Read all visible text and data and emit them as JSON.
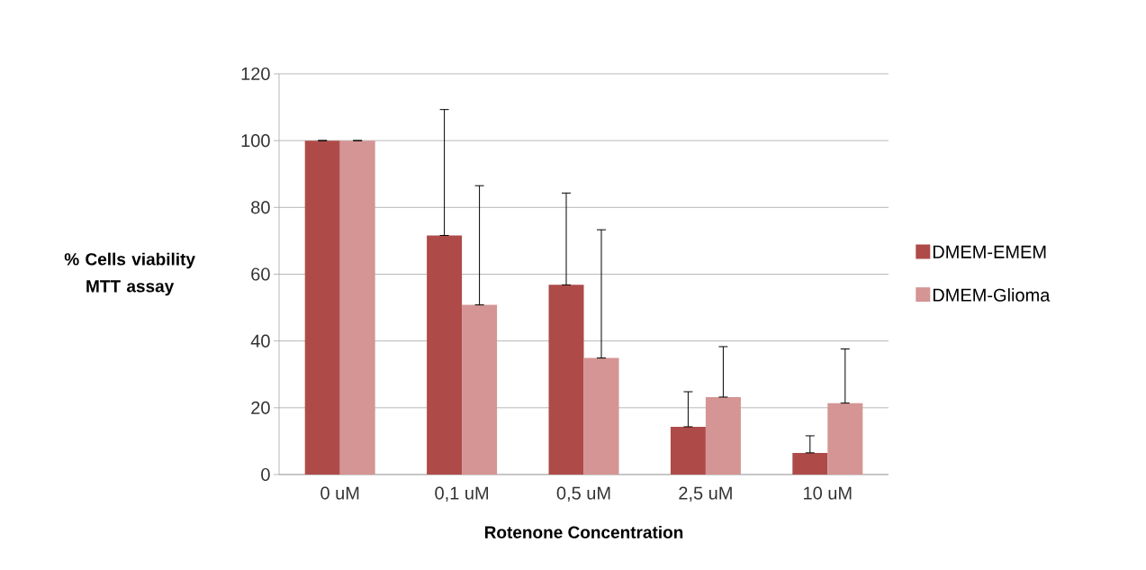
{
  "chart_data": {
    "type": "bar",
    "xlabel": "Rotenone Concentration",
    "ylabel": "% Cells viability MTT assay",
    "categories": [
      "0 uM",
      "0,1 uM",
      "0,5 uM",
      "2,5 uM",
      "10 uM"
    ],
    "series": [
      {
        "name": "DMEM-EMEM",
        "color": "#ae4b48",
        "values": [
          100,
          71.6,
          56.8,
          14.3,
          6.5
        ],
        "errors": [
          [
            100,
            100
          ],
          [
            71.6,
            109.3
          ],
          [
            56.8,
            84.3
          ],
          [
            14.3,
            24.8
          ],
          [
            6.5,
            11.6
          ]
        ]
      },
      {
        "name": "DMEM-Glioma",
        "color": "#d49594",
        "values": [
          100,
          50.8,
          34.9,
          23.2,
          21.4
        ],
        "errors": [
          [
            100,
            100
          ],
          [
            50.8,
            86.5
          ],
          [
            34.9,
            73.3
          ],
          [
            23.2,
            38.3
          ],
          [
            21.4,
            37.6
          ]
        ]
      }
    ],
    "ylim": [
      0,
      120
    ],
    "yticks": [
      0,
      20,
      40,
      60,
      80,
      100,
      120
    ],
    "grid": "y",
    "legend": "right"
  }
}
